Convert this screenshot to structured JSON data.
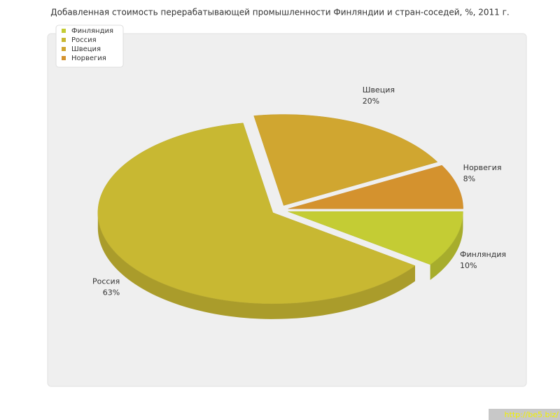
{
  "chart_data": {
    "type": "pie",
    "title": "Добавленная стоимость перерабатывающей промышленности Финляндии и стран-соседей, %, 2011 г.",
    "categories": [
      "Финляндия",
      "Россия",
      "Швеция",
      "Норвегия"
    ],
    "values": [
      10,
      63,
      20,
      8
    ],
    "value_labels": [
      "10%",
      "63%",
      "20%",
      "8%"
    ],
    "colors": [
      "#c4cc34",
      "#c8b832",
      "#d0a630",
      "#d4922e"
    ],
    "legend": "top-left",
    "watermark": "http://be5.biz/"
  }
}
